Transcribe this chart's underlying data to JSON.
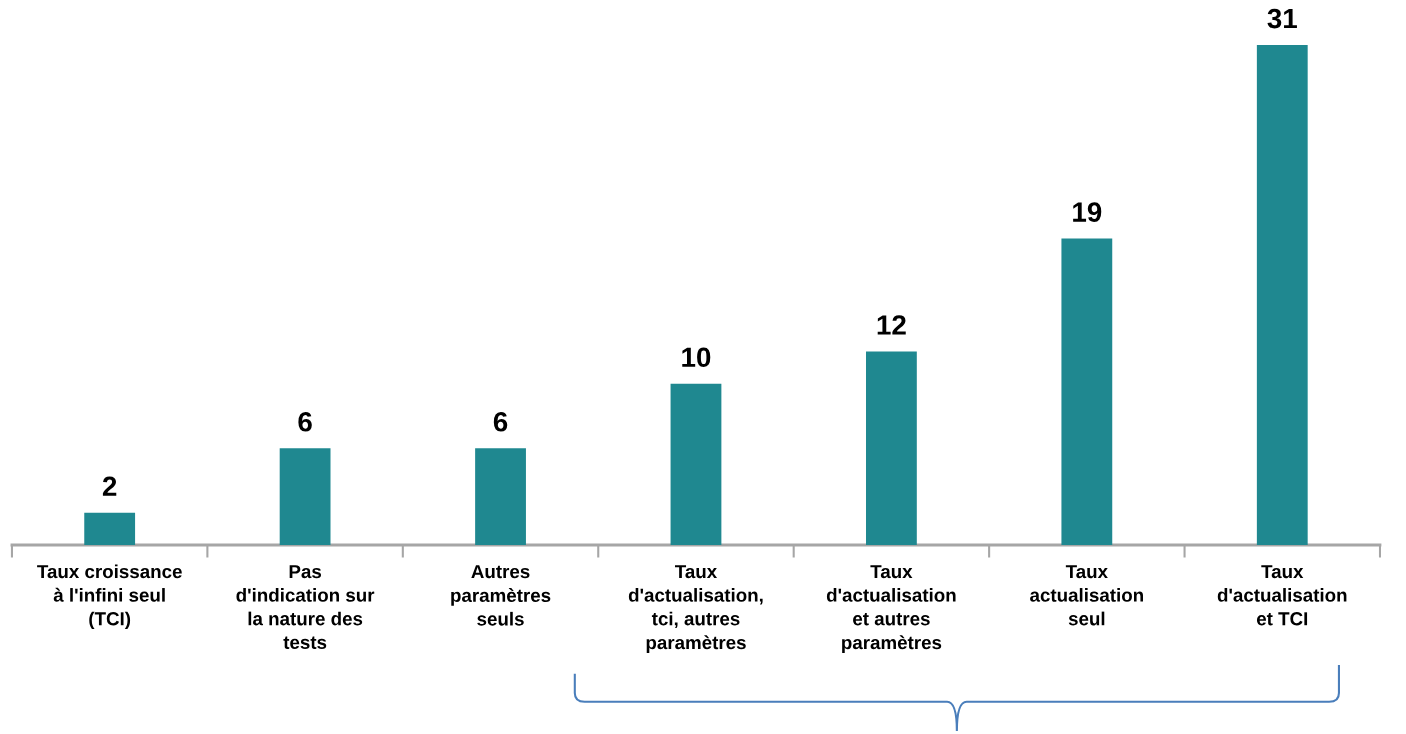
{
  "chart_data": {
    "type": "bar",
    "categories": [
      "Taux croissance\nà l'infini seul\n(TCI)",
      "Pas\nd'indication sur\nla nature des\ntests",
      "Autres\nparamètres\nseuls",
      "Taux\nd'actualisation,\ntci, autres\nparamètres",
      "Taux\nd'actualisation\net autres\nparamètres",
      "Taux\nactualisation\nseul",
      "Taux\nd'actualisation\net TCI"
    ],
    "values": [
      2,
      6,
      6,
      10,
      12,
      19,
      31
    ],
    "color": "#1f8890",
    "data_labels": true,
    "tick_labels": "x"
  }
}
